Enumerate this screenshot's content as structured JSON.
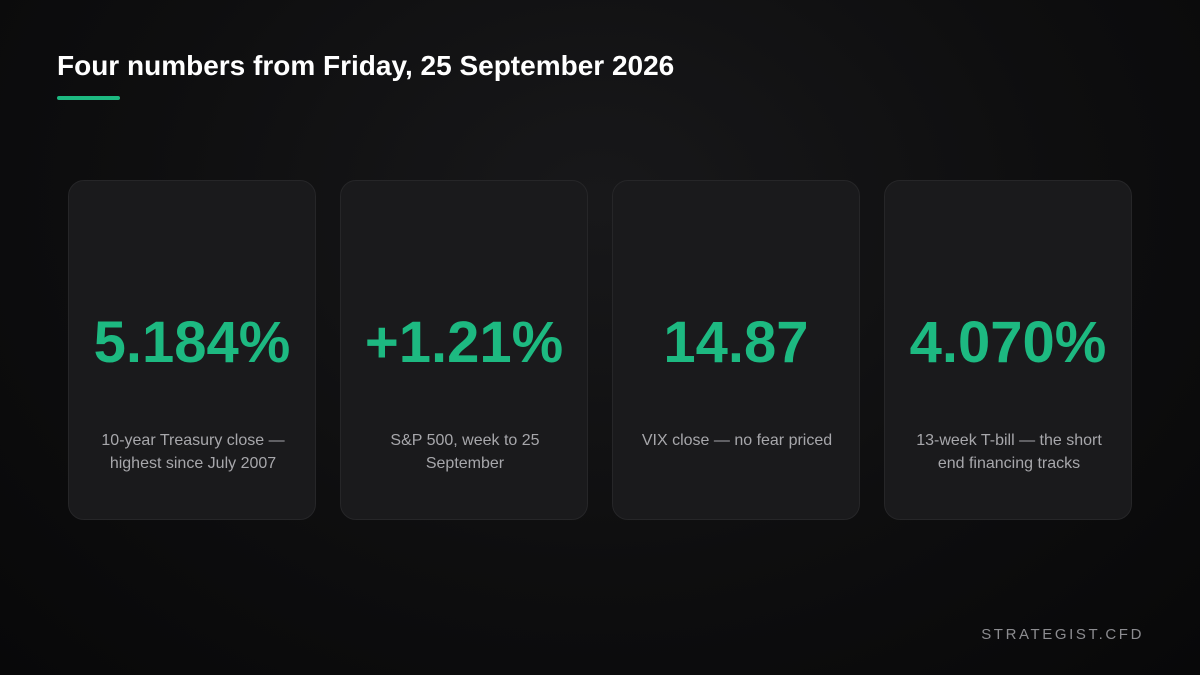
{
  "header": {
    "title": "Four numbers from Friday, 25 September 2026"
  },
  "colors": {
    "accent": "#1db981",
    "background": "#0e0e0f",
    "card": "#1a1a1c",
    "label": "#a7a7ab",
    "title": "#ffffff"
  },
  "cards": [
    {
      "value": "5.184%",
      "label": "10-year Treasury close — highest since July 2007"
    },
    {
      "value": "+1.21%",
      "label": "S&P 500, week to 25 September"
    },
    {
      "value": "14.87",
      "label": "VIX close — no fear priced"
    },
    {
      "value": "4.070%",
      "label": "13-week T-bill — the short end financing tracks"
    }
  ],
  "footer": {
    "brand": "STRATEGIST.CFD"
  }
}
